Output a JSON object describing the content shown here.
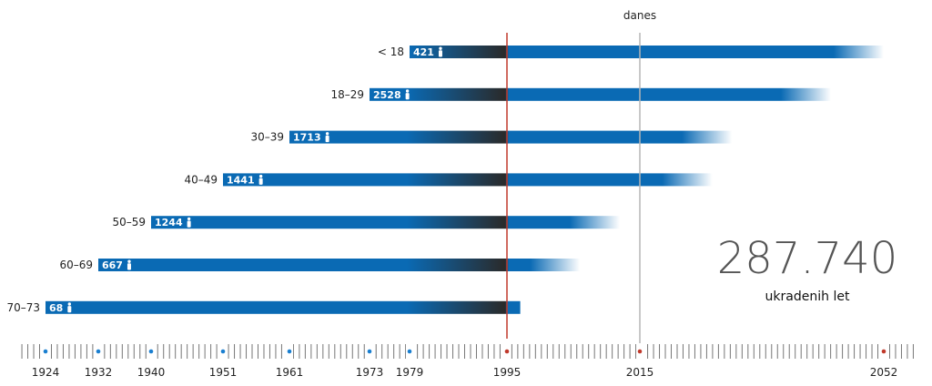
{
  "chart_data": {
    "type": "bar",
    "orientation": "horizontal",
    "reference_lines": [
      {
        "year": 1995,
        "color": "#c0392b"
      },
      {
        "year": 2015,
        "label": "danes",
        "color": "#b5b5b5"
      }
    ],
    "series": [
      {
        "age_group": "< 18",
        "count": "421",
        "start": 1979,
        "end": 2052
      },
      {
        "age_group": "18–29",
        "count": "2528",
        "start": 1973,
        "end": 2044
      },
      {
        "age_group": "30–39",
        "count": "1713",
        "start": 1961,
        "end": 2029
      },
      {
        "age_group": "40–49",
        "count": "1441",
        "start": 1951,
        "end": 2026
      },
      {
        "age_group": "50–59",
        "count": "1244",
        "start": 1940,
        "end": 2012
      },
      {
        "age_group": "60–69",
        "count": "667",
        "start": 1932,
        "end": 2006
      },
      {
        "age_group": "70–73",
        "count": "68",
        "start": 1924,
        "end": 1997
      }
    ],
    "axis_years": [
      {
        "year": "1924",
        "dot_color": "#1a7fd0"
      },
      {
        "year": "1932",
        "dot_color": "#1a7fd0"
      },
      {
        "year": "1940",
        "dot_color": "#1a7fd0"
      },
      {
        "year": "1951",
        "dot_color": "#1a7fd0"
      },
      {
        "year": "1961",
        "dot_color": "#1a7fd0"
      },
      {
        "year": "1973",
        "dot_color": "#1a7fd0"
      },
      {
        "year": "1979",
        "dot_color": "#1a7fd0"
      },
      {
        "year": "1995",
        "dot_color": "#c0392b"
      },
      {
        "year": "2015",
        "dot_color": "#c0392b"
      },
      {
        "year": "2052",
        "dot_color": "#c0392b"
      }
    ],
    "xlim": [
      1924,
      2052
    ],
    "total_value": "287.740",
    "total_label": "ukradenih let",
    "colors": {
      "bar": "#0a6ab4",
      "dark": "#2a2a2a",
      "red_line": "#c0392b",
      "today_line": "#b5b5b5",
      "tick": "#777777"
    },
    "icon": "person-icon"
  }
}
